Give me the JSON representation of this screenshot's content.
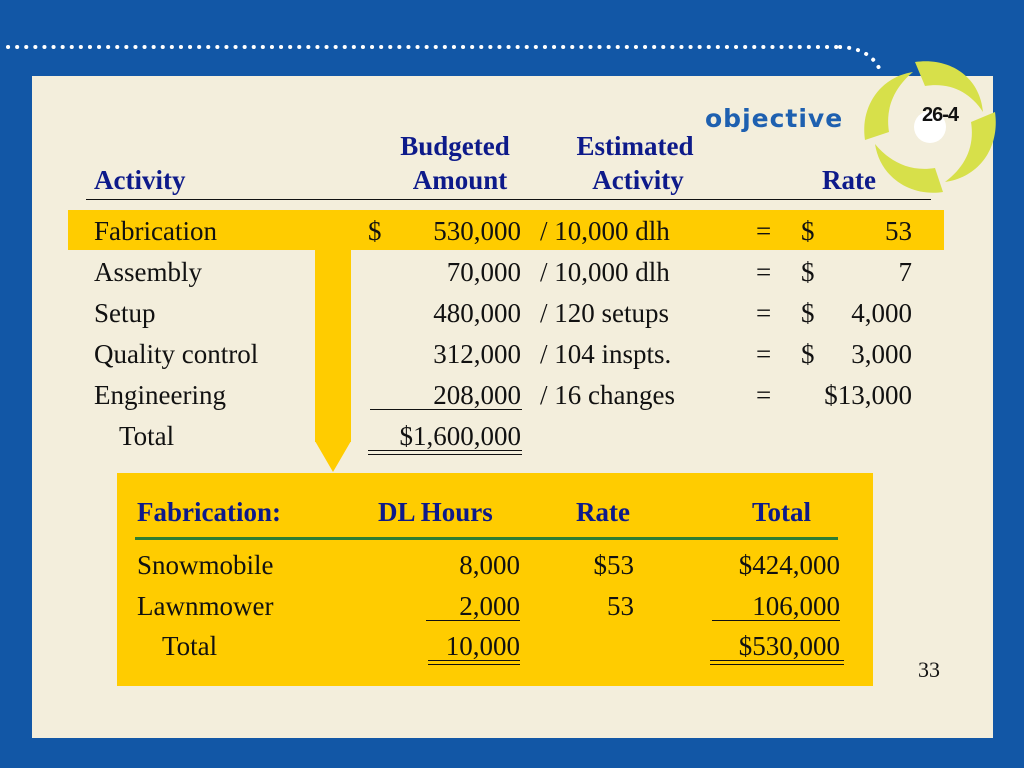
{
  "objective": {
    "label": "objective",
    "number": "26-4"
  },
  "table": {
    "headers": {
      "activity": "Activity",
      "budgeted_1": "Budgeted",
      "budgeted_2": "Amount",
      "estimated_1": "Estimated",
      "estimated_2": "Activity",
      "rate": "Rate"
    },
    "rows": [
      {
        "activity": "Fabrication",
        "dollar": "$",
        "amount": "530,000",
        "estimate": "/ 10,000 dlh",
        "eq": "=",
        "rate_dollar": "$",
        "rate": "53"
      },
      {
        "activity": "Assembly",
        "dollar": "",
        "amount": "70,000",
        "estimate": "/ 10,000 dlh",
        "eq": "=",
        "rate_dollar": "$",
        "rate": "7"
      },
      {
        "activity": "Setup",
        "dollar": "",
        "amount": "480,000",
        "estimate": "/ 120 setups",
        "eq": "=",
        "rate_dollar": "$",
        "rate": "4,000"
      },
      {
        "activity": "Quality control",
        "dollar": "",
        "amount": "312,000",
        "estimate": "/ 104 inspts.",
        "eq": "=",
        "rate_dollar": "$",
        "rate": "3,000"
      },
      {
        "activity": "Engineering",
        "dollar": "",
        "amount": "208,000",
        "estimate": "/ 16 changes",
        "eq": "=",
        "rate_dollar": "",
        "rate": "$13,000"
      }
    ],
    "total": {
      "label": "Total",
      "amount": "$1,600,000"
    }
  },
  "fabrication": {
    "headers": {
      "title": "Fabrication:",
      "dl_hours": "DL Hours",
      "rate": "Rate",
      "total": "Total"
    },
    "rows": [
      {
        "product": "Snowmobile",
        "hours": "8,000",
        "rate": "$53",
        "total": "$424,000"
      },
      {
        "product": "Lawnmower",
        "hours": "2,000",
        "rate": "53",
        "total": "106,000"
      }
    ],
    "total": {
      "label": "Total",
      "hours": "10,000",
      "total": "$530,000"
    }
  },
  "page_number": "33",
  "colors": {
    "background": "#1257a6",
    "panel": "#f3eedc",
    "highlight": "#ffcc00",
    "header_text": "#0d1a8a",
    "divider": "#2e7d32"
  }
}
